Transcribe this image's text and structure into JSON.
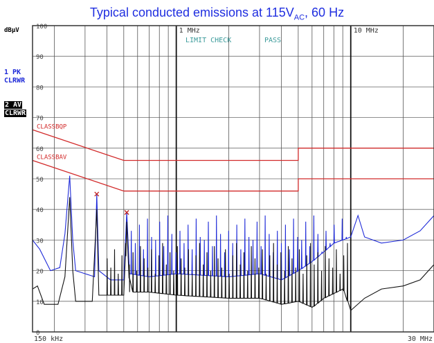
{
  "title": {
    "prefix": "Typical conducted emissions at 115V",
    "subscript": "AC",
    "suffix": ", 60 Hz"
  },
  "y_unit": "dBµV",
  "trace_labels": [
    {
      "line1": "1 PK",
      "line2": "CLRWR"
    },
    {
      "line1": "2 AV",
      "line2": "CLRWR"
    }
  ],
  "status_text": {
    "limit_check": "LIMIT CHECK",
    "result": "PASS"
  },
  "colors": {
    "title": "#1f2ee0",
    "peak": "#1e2ad8",
    "average": "#111111",
    "limit": "#d22a2a",
    "status": "#3a9a9a",
    "grid": "#555555"
  },
  "chart_data": {
    "type": "line",
    "x_scale": "log",
    "xlim_hz": [
      150000,
      30000000
    ],
    "ylim": [
      0,
      100
    ],
    "ylabel": "dBµV",
    "x_start_label": "150 kHz",
    "x_end_label": "30 MHz",
    "x_tick_labels": [
      {
        "hz": 1000000,
        "label": "1 MHz"
      },
      {
        "hz": 10000000,
        "label": "10 MHz"
      }
    ],
    "y_ticks": [
      0,
      10,
      20,
      30,
      40,
      50,
      60,
      70,
      80,
      90,
      100
    ],
    "grid": true,
    "limit_lines": [
      {
        "name": "CLASSBQP",
        "points": [
          [
            150000,
            66
          ],
          [
            500000,
            56
          ],
          [
            5000000,
            56
          ],
          [
            5000000,
            60
          ],
          [
            30000000,
            60
          ]
        ]
      },
      {
        "name": "CLASSBAV",
        "points": [
          [
            150000,
            56
          ],
          [
            500000,
            46
          ],
          [
            5000000,
            46
          ],
          [
            5000000,
            50
          ],
          [
            30000000,
            50
          ]
        ]
      }
    ],
    "markers": [
      {
        "x_hz": 350000,
        "y": 45
      },
      {
        "x_hz": 520000,
        "y": 39
      }
    ],
    "series": [
      {
        "trace": "1 PK",
        "color": "#1e2ad8",
        "baseline": [
          [
            150000,
            30
          ],
          [
            165000,
            27
          ],
          [
            190000,
            20
          ],
          [
            215000,
            21
          ],
          [
            230000,
            32
          ],
          [
            245000,
            51
          ],
          [
            255000,
            30
          ],
          [
            265000,
            20
          ],
          [
            300000,
            19
          ],
          [
            340000,
            18
          ],
          [
            350000,
            45
          ],
          [
            360000,
            20
          ],
          [
            420000,
            17
          ],
          [
            500000,
            17
          ],
          [
            520000,
            39
          ],
          [
            540000,
            19
          ],
          [
            700000,
            18
          ],
          [
            1000000,
            19
          ],
          [
            2000000,
            18
          ],
          [
            3000000,
            19
          ],
          [
            4000000,
            17
          ],
          [
            5000000,
            20
          ],
          [
            6000000,
            23
          ],
          [
            8000000,
            29
          ],
          [
            10000000,
            31
          ],
          [
            11000000,
            38
          ],
          [
            12000000,
            31
          ],
          [
            15000000,
            29
          ],
          [
            20000000,
            30
          ],
          [
            25000000,
            33
          ],
          [
            30000000,
            38
          ]
        ],
        "spikes": [
          {
            "from_hz": 550000,
            "to_hz": 10000000,
            "step": 1.055,
            "heights": [
              33,
              29,
              35,
              27,
              37,
              31,
              30,
              36,
              28,
              38,
              32,
              26
            ]
          }
        ]
      },
      {
        "trace": "2 AV",
        "color": "#111111",
        "baseline": [
          [
            150000,
            14
          ],
          [
            160000,
            15
          ],
          [
            175000,
            9
          ],
          [
            210000,
            9
          ],
          [
            230000,
            18
          ],
          [
            245000,
            44
          ],
          [
            255000,
            20
          ],
          [
            265000,
            10
          ],
          [
            330000,
            10
          ],
          [
            350000,
            40
          ],
          [
            360000,
            12
          ],
          [
            400000,
            12
          ],
          [
            500000,
            12
          ],
          [
            520000,
            36
          ],
          [
            540000,
            13
          ],
          [
            700000,
            13
          ],
          [
            1000000,
            12
          ],
          [
            2000000,
            11
          ],
          [
            3000000,
            11
          ],
          [
            4000000,
            9
          ],
          [
            5000000,
            10
          ],
          [
            6000000,
            8
          ],
          [
            7000000,
            11
          ],
          [
            9000000,
            14
          ],
          [
            10000000,
            7
          ],
          [
            12000000,
            11
          ],
          [
            15000000,
            14
          ],
          [
            20000000,
            15
          ],
          [
            25000000,
            17
          ],
          [
            30000000,
            22
          ]
        ],
        "spikes": [
          {
            "from_hz": 400000,
            "to_hz": 10000000,
            "step": 1.05,
            "heights": [
              24,
              21,
              27,
              19,
              25,
              29,
              22,
              26,
              20,
              28
            ]
          }
        ]
      }
    ]
  }
}
